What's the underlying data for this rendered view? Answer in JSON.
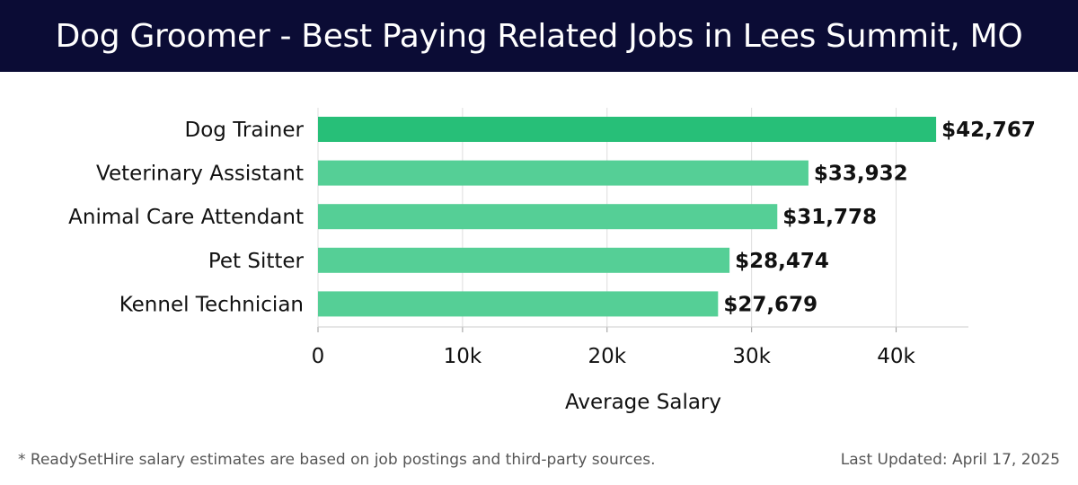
{
  "header": {
    "title": "Dog Groomer - Best Paying Related Jobs in Lees Summit, MO"
  },
  "chart_data": {
    "type": "bar",
    "orientation": "horizontal",
    "categories": [
      "Dog Trainer",
      "Veterinary Assistant",
      "Animal Care Attendant",
      "Pet Sitter",
      "Kennel Technician"
    ],
    "values": [
      42767,
      33932,
      31778,
      28474,
      27679
    ],
    "value_labels": [
      "$42,767",
      "$33,932",
      "$31,778",
      "$28,474",
      "$27,679"
    ],
    "xlabel": "Average Salary",
    "ylabel": "",
    "xlim": [
      0,
      45000
    ],
    "xticks": [
      0,
      10000,
      20000,
      30000,
      40000
    ],
    "xtick_labels": [
      "0",
      "10k",
      "20k",
      "30k",
      "40k"
    ],
    "grid": true,
    "colors": {
      "top_bar": "#27bf78",
      "bar": "#55cf96",
      "grid": "#dddddd",
      "axis": "#cccccc"
    }
  },
  "footer": {
    "note": "* ReadySetHire salary estimates are based on job postings and third-party sources.",
    "updated": "Last Updated: April 17, 2025"
  }
}
